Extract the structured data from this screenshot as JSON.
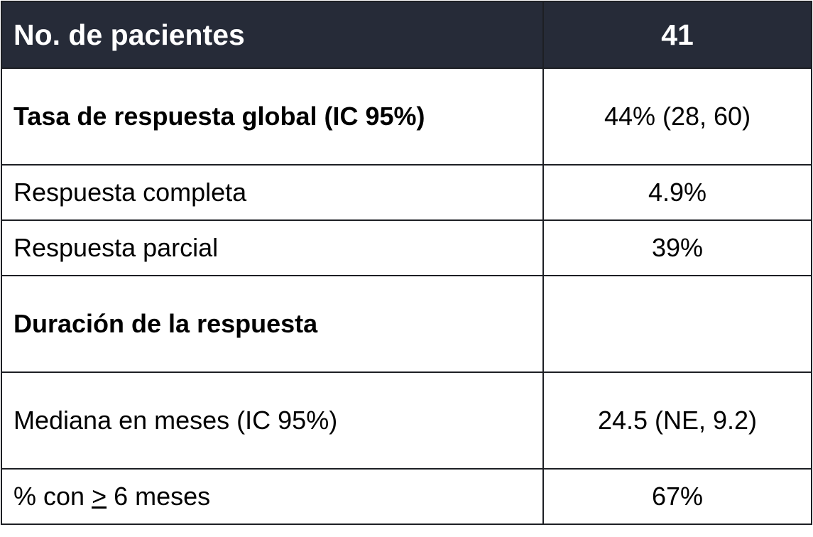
{
  "header": {
    "label": "No. de pacientes",
    "value": "41"
  },
  "rows": [
    {
      "label": "Tasa de respuesta global (IC 95%)",
      "value": "44% (28, 60)"
    },
    {
      "label": "Respuesta completa",
      "value": "4.9%"
    },
    {
      "label": "Respuesta parcial",
      "value": "39%"
    },
    {
      "label": "Duración de la respuesta",
      "value": ""
    },
    {
      "label": "Mediana en meses (IC 95%)",
      "value": "24.5 (NE, 9.2)"
    },
    {
      "label_prefix": "% con ",
      "label_symbol": ">",
      "label_suffix": " 6 meses",
      "value": "67%"
    }
  ]
}
